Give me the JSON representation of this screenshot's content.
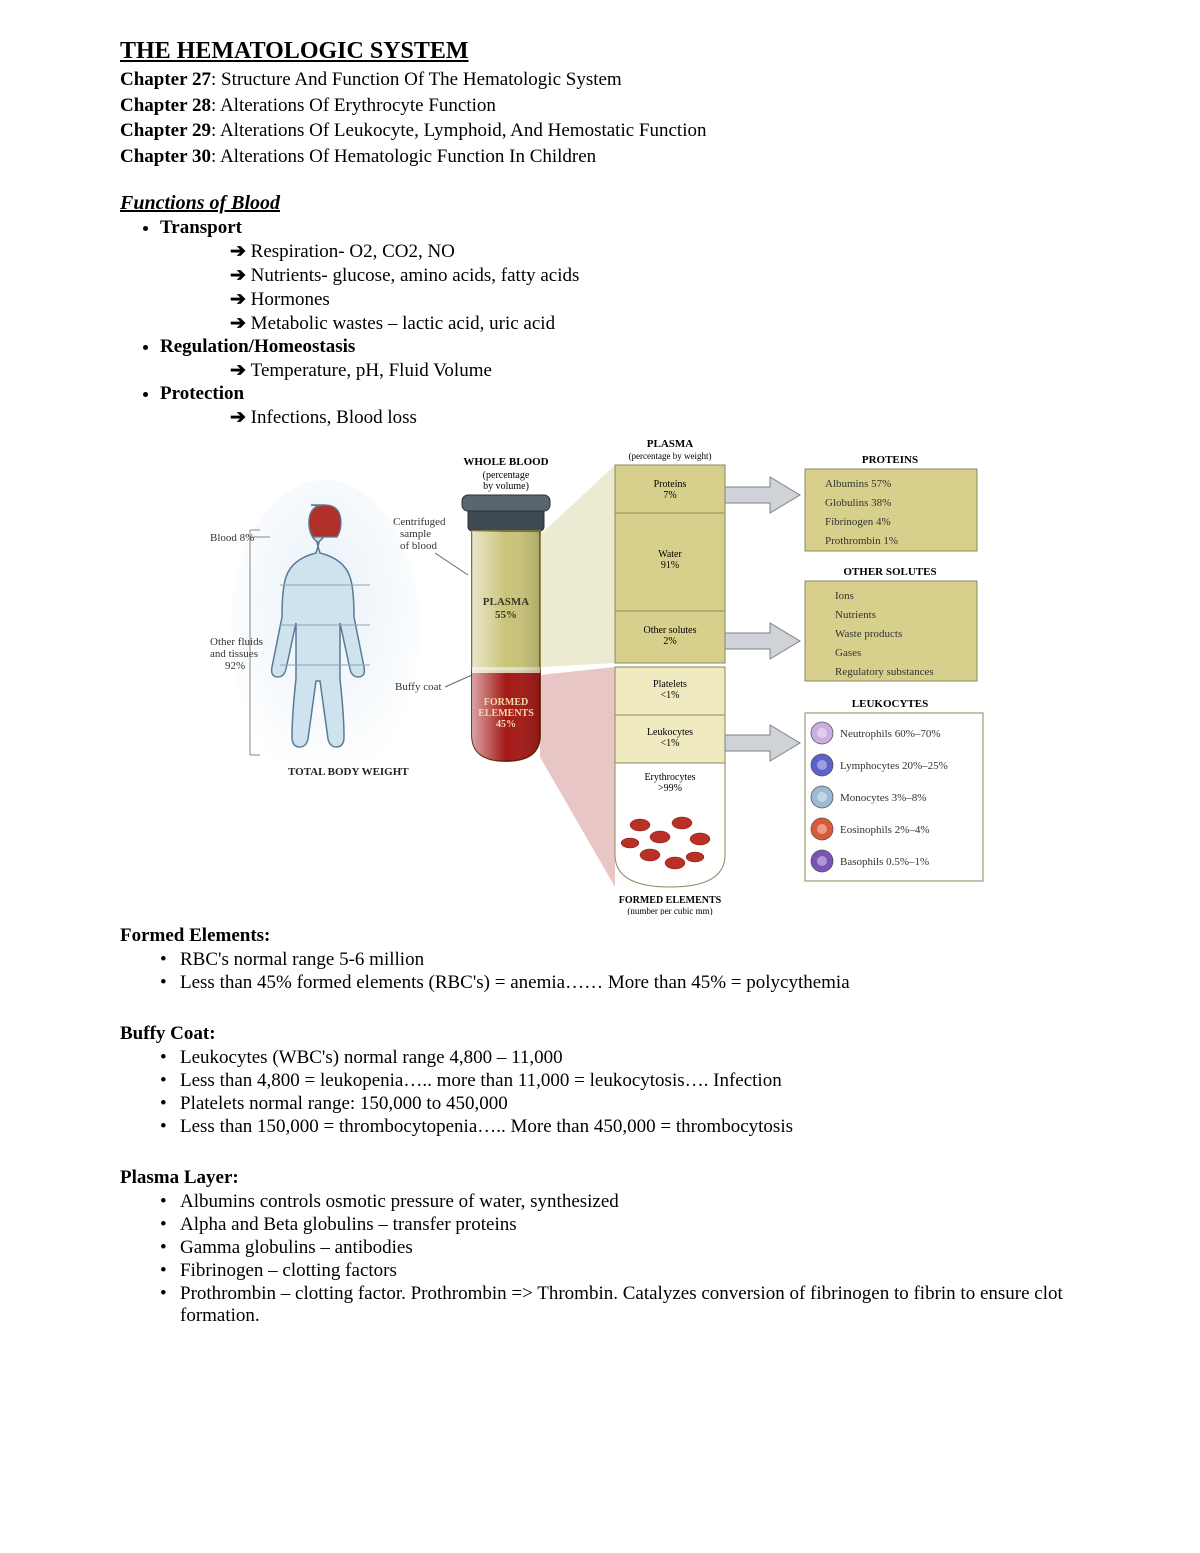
{
  "title": "THE HEMATOLOGIC SYSTEM",
  "chapters": [
    {
      "num": "Chapter 27",
      "txt": ": Structure And Function Of The Hematologic System"
    },
    {
      "num": "Chapter 28",
      "txt": ": Alterations Of Erythrocyte Function"
    },
    {
      "num": "Chapter 29",
      "txt": ": Alterations Of Leukocyte, Lymphoid, And Hemostatic Function"
    },
    {
      "num": "Chapter 30",
      "txt": ": Alterations Of Hematologic Function In Children"
    }
  ],
  "funcHeader": "Functions of Blood",
  "funcs": [
    {
      "h": "Transport",
      "items": [
        "Respiration- O2, CO2, NO",
        "Nutrients- glucose, amino acids, fatty acids",
        "Hormones",
        "Metabolic wastes – lactic acid, uric acid"
      ]
    },
    {
      "h": "Regulation/Homeostasis",
      "items": [
        "Temperature, pH, Fluid Volume"
      ]
    },
    {
      "h": "Protection",
      "items": [
        "Infections, Blood loss"
      ]
    }
  ],
  "sections": [
    {
      "title": "Formed Elements:",
      "items": [
        "RBC's normal range 5-6 million",
        "Less than 45% formed elements (RBC's) = anemia…… More than 45% = polycythemia"
      ]
    },
    {
      "title": "Buffy Coat:",
      "items": [
        "Leukocytes (WBC's) normal range 4,800 – 11,000",
        "Less than 4,800 = leukopenia….. more than 11,000 = leukocytosis…. Infection",
        "Platelets normal range: 150,000 to 450,000",
        "Less than 150,000 = thrombocytopenia….. More than 450,000 = thrombocytosis"
      ]
    },
    {
      "title": "Plasma Layer:",
      "items": [
        "Albumins controls osmotic pressure of water, synthesized",
        "Alpha and Beta globulins – transfer proteins",
        "Gamma globulins – antibodies",
        "Fibrinogen – clotting factors",
        "Prothrombin – clotting factor. Prothrombin => Thrombin. Catalyzes conversion of fibrinogen to fibrin to ensure clot formation."
      ]
    }
  ],
  "diagram": {
    "colors": {
      "plasma": "#c9c47a",
      "plasmaDark": "#b0a85e",
      "red": "#a31a17",
      "redDark": "#7d120f",
      "boxFill": "#d6d08c",
      "boxBorder": "#8a8a5a",
      "arrowFill": "#cfd2d6",
      "arrowStroke": "#7e8388",
      "bodyFill": "#cfe3ef",
      "bodyStroke": "#5a7a95",
      "capRed": "#b2302a",
      "neutro": "#c9aee0",
      "lympho": "#5b62c9",
      "mono": "#9db9d6",
      "eos": "#d85a3a",
      "baso": "#7a54b5"
    },
    "labels": {
      "wholeBlood": "WHOLE BLOOD",
      "wholeBloodSub": "(percentage",
      "wholeBloodSub2": "by volume)",
      "plasmaTitle": "PLASMA",
      "plasmaSub": "(percentage by weight)",
      "formedTitle": "FORMED ELEMENTS",
      "formedSub": "(number per cubic mm)",
      "totalBody": "TOTAL BODY WEIGHT",
      "blood8": "Blood 8%",
      "otherFluids1": "Other fluids",
      "otherFluids2": "and tissues",
      "otherFluids3": "92%",
      "centrifuged1": "Centrifuged",
      "centrifuged2": "sample",
      "centrifuged3": "of blood",
      "buffyCoat": "Buffy coat",
      "plasma55": "PLASMA",
      "plasma55b": "55%",
      "formed45a": "FORMED",
      "formed45b": "ELEMENTS",
      "formed45c": "45%",
      "proteins7a": "Proteins",
      "proteins7b": "7%",
      "water91a": "Water",
      "water91b": "91%",
      "other2a": "Other solutes",
      "other2b": "2%",
      "plate1a": "Platelets",
      "plate1b": "<1%",
      "leuk1a": "Leukocytes",
      "leuk1b": "<1%",
      "eryth99a": "Erythrocytes",
      "eryth99b": ">99%",
      "proteinsHdr": "PROTEINS",
      "otherHdr": "OTHER SOLUTES",
      "leukHdr": "LEUKOCYTES",
      "proteinsList": [
        "Albumins  57%",
        "Globulins  38%",
        "Fibrinogen  4%",
        "Prothrombin  1%"
      ],
      "otherList": [
        "Ions",
        "Nutrients",
        "Waste products",
        "Gases",
        "Regulatory substances"
      ],
      "leukList": [
        "Neutrophils  60%–70%",
        "Lymphocytes 20%–25%",
        "Monocytes  3%–8%",
        "Eosinophils  2%–4%",
        "Basophils  0.5%–1%"
      ]
    }
  }
}
